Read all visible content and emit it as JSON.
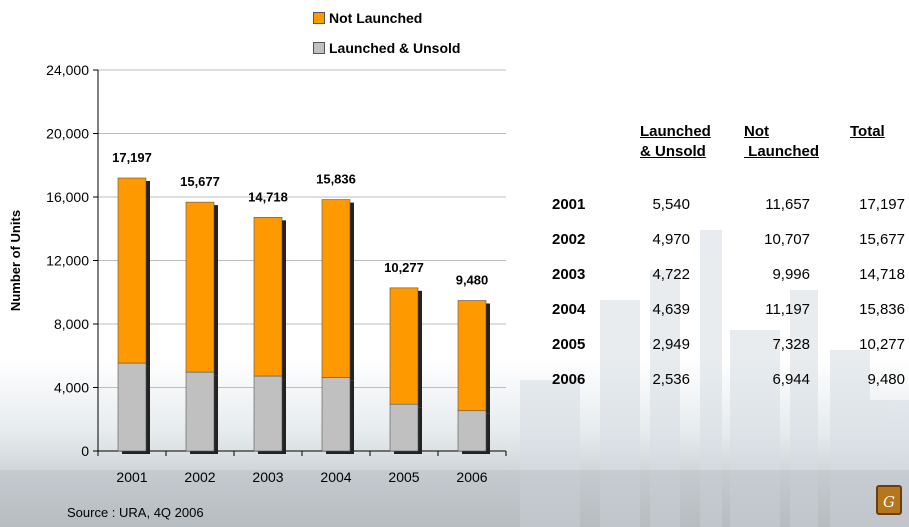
{
  "legend": [
    {
      "label": "Not Launched",
      "color": "#ff9900"
    },
    {
      "label": "Launched & Unsold",
      "color": "#c0c0c0"
    }
  ],
  "chart_data": {
    "type": "bar",
    "stacked": true,
    "categories": [
      "2001",
      "2002",
      "2003",
      "2004",
      "2005",
      "2006"
    ],
    "series": [
      {
        "name": "Launched & Unsold",
        "color": "#c0c0c0",
        "values": [
          5540,
          4970,
          4722,
          4639,
          2949,
          2536
        ]
      },
      {
        "name": "Not Launched",
        "color": "#ff9900",
        "values": [
          11657,
          10707,
          9996,
          11197,
          7328,
          6944
        ]
      }
    ],
    "totals": [
      "17,197",
      "15,677",
      "14,718",
      "15,836",
      "10,277",
      "9,480"
    ],
    "ylabel": "Number of Units",
    "ylim": [
      0,
      24000
    ],
    "yticks": [
      0,
      4000,
      8000,
      12000,
      16000,
      20000,
      24000
    ],
    "ytick_labels": [
      "0",
      "4,000",
      "8,000",
      "12,000",
      "16,000",
      "20,000",
      "24,000"
    ],
    "grid": true
  },
  "table": {
    "headers": [
      "Launched\n& Unsold",
      "Not\n Launched",
      "Total"
    ],
    "rows": [
      {
        "year": "2001",
        "launched_unsold": "5,540",
        "not_launched": "11,657",
        "total": "17,197"
      },
      {
        "year": "2002",
        "launched_unsold": "4,970",
        "not_launched": "10,707",
        "total": "15,677"
      },
      {
        "year": "2003",
        "launched_unsold": "4,722",
        "not_launched": "9,996",
        "total": "14,718"
      },
      {
        "year": "2004",
        "launched_unsold": "4,639",
        "not_launched": "11,197",
        "total": "15,836"
      },
      {
        "year": "2005",
        "launched_unsold": "2,949",
        "not_launched": "7,328",
        "total": "10,277"
      },
      {
        "year": "2006",
        "launched_unsold": "2,536",
        "not_launched": "6,944",
        "total": "9,480"
      }
    ]
  },
  "source": "Source : URA, 4Q 2006",
  "logo": "G"
}
